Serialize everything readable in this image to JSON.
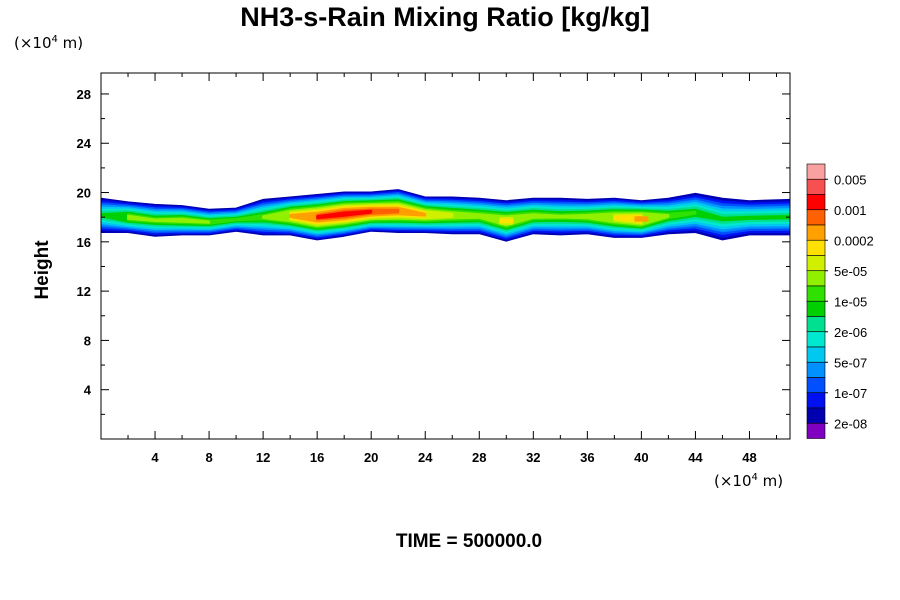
{
  "chart_data": {
    "type": "heatmap",
    "title": "NH3-s-Rain Mixing Ratio [kg/kg]",
    "ylabel": "Height",
    "y_unit": {
      "prefix": "(×10",
      "exp": "4",
      "suffix": " m)"
    },
    "x_unit": {
      "prefix": "(×10",
      "exp": "4",
      "suffix": " m)"
    },
    "xlim": [
      0,
      51
    ],
    "ylim": [
      0,
      29.7
    ],
    "x_ticks": [
      4,
      8,
      12,
      16,
      20,
      24,
      28,
      32,
      36,
      40,
      44,
      48
    ],
    "y_ticks": [
      4,
      8,
      12,
      16,
      20,
      24,
      28
    ],
    "footer": "TIME = 500000.0",
    "legend": {
      "colors": [
        "#f9a0a0",
        "#f75050",
        "#ff0000",
        "#ff6000",
        "#ffa000",
        "#ffe000",
        "#d0f000",
        "#90f000",
        "#30e000",
        "#00d000",
        "#00e090",
        "#00e8d0",
        "#00c8f0",
        "#0090ff",
        "#0050ff",
        "#0010f0",
        "#0000b0",
        "#8000c0"
      ],
      "labels": [
        "0.005",
        "0.001",
        "0.0002",
        "5e-05",
        "1e-05",
        "2e-06",
        "5e-07",
        "1e-07",
        "2e-08"
      ]
    },
    "band": {
      "x": [
        0,
        2,
        4,
        6,
        8,
        10,
        12,
        14,
        16,
        18,
        20,
        22,
        24,
        26,
        28,
        30,
        32,
        34,
        36,
        38,
        40,
        42,
        44,
        46,
        48,
        51
      ],
      "y_bottom": [
        16.8,
        16.8,
        16.5,
        16.6,
        16.6,
        16.9,
        16.6,
        16.6,
        16.2,
        16.5,
        16.9,
        16.8,
        16.8,
        16.7,
        16.7,
        16.1,
        16.7,
        16.6,
        16.7,
        16.4,
        16.4,
        16.7,
        16.8,
        16.2,
        16.6,
        16.6
      ],
      "y_top": [
        19.5,
        19.2,
        19.0,
        18.9,
        18.6,
        18.7,
        19.4,
        19.6,
        19.8,
        20.0,
        20.0,
        20.2,
        19.6,
        19.6,
        19.5,
        19.3,
        19.5,
        19.5,
        19.4,
        19.5,
        19.3,
        19.5,
        19.9,
        19.5,
        19.3,
        19.4
      ],
      "peak": [
        0.45,
        0.6,
        0.55,
        0.6,
        0.55,
        0.5,
        0.55,
        0.75,
        0.9,
        0.95,
        0.9,
        0.85,
        0.75,
        0.65,
        0.6,
        0.7,
        0.6,
        0.55,
        0.6,
        0.7,
        0.8,
        0.55,
        0.5,
        0.45,
        0.45,
        0.45
      ]
    }
  }
}
